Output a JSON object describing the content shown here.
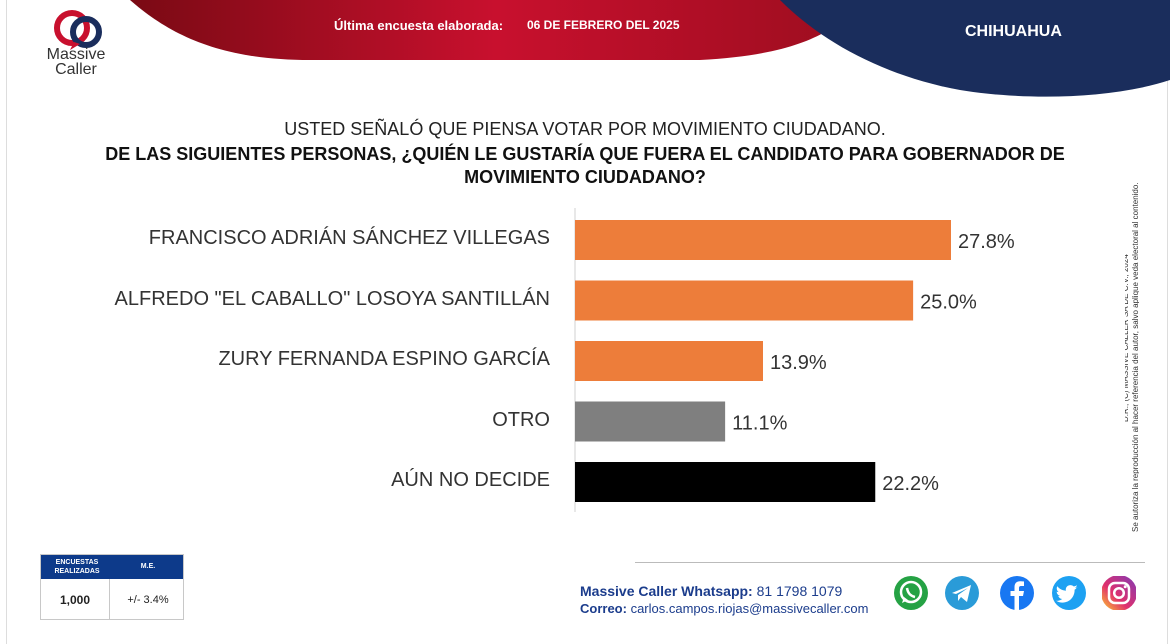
{
  "brand": {
    "name_line1": "Massive",
    "name_line2": "Caller"
  },
  "header": {
    "survey_label": "Última encuesta elaborada:",
    "survey_date": "06 DE FEBRERO DEL 2025",
    "region": "CHIHUAHUA",
    "colors": {
      "red": "#c8102e",
      "navy": "#1a2d5c"
    }
  },
  "question": {
    "line1": "USTED SEÑALÓ QUE PIENSA VOTAR POR MOVIMIENTO CIUDADANO.",
    "line2": "DE LAS SIGUIENTES PERSONAS, ¿QUIÉN LE GUSTARÍA QUE FUERA EL CANDIDATO PARA GOBERNADOR DE MOVIMIENTO CIUDADANO?"
  },
  "chart_data": {
    "type": "bar",
    "orientation": "horizontal",
    "categories": [
      "FRANCISCO ADRIÁN SÁNCHEZ VILLEGAS",
      "ALFREDO \"EL CABALLO\" LOSOYA SANTILLÁN",
      "ZURY FERNANDA ESPINO GARCÍA",
      "OTRO",
      "AÚN NO DECIDE"
    ],
    "values": [
      27.8,
      25.0,
      13.9,
      11.1,
      22.2
    ],
    "labels": [
      "27.8%",
      "25.0%",
      "13.9%",
      "11.1%",
      "22.2%"
    ],
    "colors": [
      "#ed7d3a",
      "#ed7d3a",
      "#ed7d3a",
      "#7f7f7f",
      "#000000"
    ],
    "xlim": [
      0,
      35
    ],
    "grid": false,
    "legend": "none"
  },
  "sidebar_note": {
    "line1": "D.R., (C) MASSIVE CALLER SA DE C.V., 2024",
    "line2": "Se autoriza la reproducción al hacer referencia del autor, salvo aplique veda electoral al contenido."
  },
  "info_table": {
    "header_col1": "ENCUESTAS REALIZADAS",
    "header_col2": "M.E.",
    "value_col1": "1,000",
    "value_col2": "+/- 3.4%"
  },
  "contact": {
    "whatsapp_label": "Massive Caller Whatsapp:",
    "whatsapp_number": "81 1798 1079",
    "email_label": "Correo:",
    "email": "carlos.campos.riojas@massivecaller.com"
  },
  "social_icons": [
    "whatsapp-icon",
    "telegram-icon",
    "facebook-icon",
    "twitter-icon",
    "instagram-icon"
  ]
}
